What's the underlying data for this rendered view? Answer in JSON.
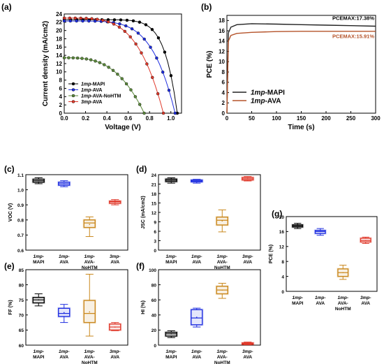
{
  "chart_data": [
    {
      "panel": "(a)",
      "type": "line",
      "xlabel": "Voltage (V)",
      "ylabel": "Current density (mA/cm2)",
      "xlim": [
        0.0,
        1.1
      ],
      "ylim": [
        0,
        24
      ],
      "xticks": [
        "0.0",
        "0.2",
        "0.4",
        "0.6",
        "0.8",
        "1.0"
      ],
      "yticks": [
        "0",
        "2",
        "4",
        "6",
        "8",
        "10",
        "12",
        "14",
        "16",
        "18",
        "20",
        "22",
        "24"
      ],
      "legend_position": "lower-left",
      "series": [
        {
          "name": "1mp-MAPI",
          "color": "#000000",
          "jsc": 22.6,
          "voc": 1.06,
          "shape": 9
        },
        {
          "name": "1mp-AVA",
          "color": "#1f2ee0",
          "jsc": 22.3,
          "voc": 1.04,
          "shape": 5
        },
        {
          "name": "1mp-AVA-NoHTM",
          "color": "#5c8a3c",
          "jsc": 13.4,
          "voc": 0.75,
          "shape": 3
        },
        {
          "name": "3mp-AVA",
          "color": "#e0392b",
          "jsc": 23.0,
          "voc": 0.93,
          "shape": 4
        }
      ]
    },
    {
      "panel": "(b)",
      "type": "line",
      "xlabel": "Time (s)",
      "ylabel": "PCE (%)",
      "xlim": [
        0,
        300
      ],
      "ylim": [
        0,
        19
      ],
      "xticks": [
        "0",
        "50",
        "100",
        "150",
        "200",
        "250",
        "300"
      ],
      "yticks": [
        "0",
        "2",
        "4",
        "6",
        "8",
        "10",
        "12",
        "14",
        "16",
        "18"
      ],
      "legend_position": "lower-left",
      "annotations": [
        "PCEMAX:17.38%",
        "PCEMAX:15.91%"
      ],
      "series": [
        {
          "name": "1mp-MAPI",
          "color": "#222222",
          "x": [
            0,
            3,
            8,
            20,
            50,
            100,
            150,
            200,
            250,
            300
          ],
          "values": [
            0,
            15.6,
            16.7,
            17.2,
            17.38,
            17.3,
            17.2,
            17.1,
            17.0,
            16.9
          ]
        },
        {
          "name": "1mp-AVA",
          "color": "#b5532a",
          "x": [
            0,
            3,
            8,
            20,
            50,
            100,
            150,
            200,
            250,
            300
          ],
          "values": [
            0,
            14.0,
            15.1,
            15.5,
            15.7,
            15.85,
            15.9,
            15.91,
            15.9,
            15.9
          ]
        }
      ]
    },
    {
      "panel": "(c)",
      "type": "box",
      "ylabel": "VOC (V)",
      "ylim": [
        0.6,
        1.1
      ],
      "yticks": [
        "0.6",
        "0.7",
        "0.8",
        "0.9",
        "1.0",
        "1.1"
      ],
      "categories": [
        "1mp-MAPI",
        "1mp-AVA",
        "1mp-AVA-NoHTM",
        "3mp-AVA"
      ],
      "boxes": [
        {
          "min": 1.04,
          "q1": 1.05,
          "median": 1.06,
          "q3": 1.07,
          "max": 1.08,
          "mean": 1.06,
          "color": "#000000"
        },
        {
          "min": 1.02,
          "q1": 1.03,
          "median": 1.04,
          "q3": 1.05,
          "max": 1.06,
          "mean": 1.04,
          "color": "#1f2ee0"
        },
        {
          "min": 0.69,
          "q1": 0.75,
          "median": 0.78,
          "q3": 0.8,
          "max": 0.82,
          "mean": 0.77,
          "color": "#c9871b"
        },
        {
          "min": 0.9,
          "q1": 0.91,
          "median": 0.92,
          "q3": 0.925,
          "max": 0.935,
          "mean": 0.918,
          "color": "#e0392b"
        }
      ]
    },
    {
      "panel": "(d)",
      "type": "box",
      "ylabel": "JSC (mA/cm2)",
      "ylim": [
        0,
        24
      ],
      "yticks": [
        "0",
        "3",
        "6",
        "9",
        "12",
        "15",
        "18",
        "21",
        "24"
      ],
      "categories": [
        "1mp-MAPI",
        "1mp-AVA",
        "1mp-AVA-NoHTM",
        "3mp-AVA"
      ],
      "boxes": [
        {
          "min": 21.3,
          "q1": 21.8,
          "median": 22.2,
          "q3": 22.6,
          "max": 23.0,
          "mean": 22.2,
          "color": "#000000"
        },
        {
          "min": 21.3,
          "q1": 21.7,
          "median": 22.0,
          "q3": 22.3,
          "max": 22.5,
          "mean": 22.0,
          "color": "#1f2ee0"
        },
        {
          "min": 5.8,
          "q1": 8.0,
          "median": 9.5,
          "q3": 10.5,
          "max": 12.8,
          "mean": 9.3,
          "color": "#c9871b"
        },
        {
          "min": 22.0,
          "q1": 22.3,
          "median": 22.7,
          "q3": 23.1,
          "max": 23.4,
          "mean": 22.7,
          "color": "#e0392b"
        }
      ]
    },
    {
      "panel": "(e)",
      "type": "box",
      "ylabel": "FF (%)",
      "ylim": [
        60,
        85
      ],
      "yticks": [
        "60",
        "65",
        "70",
        "75",
        "80",
        "85"
      ],
      "categories": [
        "1mp-MAPI",
        "1mp-AVA",
        "1mp-AVA-NoHTM",
        "3mp-AVA"
      ],
      "boxes": [
        {
          "min": 73.0,
          "q1": 74.0,
          "median": 75.0,
          "q3": 75.8,
          "max": 77.0,
          "mean": 75.0,
          "color": "#000000"
        },
        {
          "min": 67.5,
          "q1": 69.5,
          "median": 70.5,
          "q3": 72.2,
          "max": 73.5,
          "mean": 70.8,
          "color": "#1f2ee0"
        },
        {
          "min": 63.0,
          "q1": 67.5,
          "median": 70.5,
          "q3": 74.8,
          "max": 83.5,
          "mean": 71.0,
          "color": "#c9871b"
        },
        {
          "min": 64.8,
          "q1": 65.0,
          "median": 66.0,
          "q3": 67.0,
          "max": 67.5,
          "mean": 66.0,
          "color": "#e0392b"
        }
      ]
    },
    {
      "panel": "(f)",
      "type": "box",
      "ylabel": "HI (%)",
      "ylim": [
        0,
        100
      ],
      "yticks": [
        "0",
        "20",
        "40",
        "60",
        "80",
        "100"
      ],
      "categories": [
        "1mp-MAPI",
        "1mp-AVA",
        "1mp-AVA-NoHTM",
        "3mp-AVA"
      ],
      "boxes": [
        {
          "min": 10.0,
          "q1": 12.0,
          "median": 15.0,
          "q3": 17.0,
          "max": 19.0,
          "mean": 15.0,
          "color": "#000000"
        },
        {
          "min": 24.0,
          "q1": 27.0,
          "median": 36.0,
          "q3": 47.0,
          "max": 49.0,
          "mean": 37.0,
          "color": "#1f2ee0"
        },
        {
          "min": 62.0,
          "q1": 68.0,
          "median": 73.0,
          "q3": 78.0,
          "max": 82.0,
          "mean": 73.0,
          "color": "#c9871b"
        },
        {
          "min": 0.5,
          "q1": 1.0,
          "median": 2.0,
          "q3": 3.0,
          "max": 4.0,
          "mean": 2.0,
          "color": "#e0392b"
        }
      ]
    },
    {
      "panel": "(g)",
      "type": "box",
      "ylabel": "PCE (%)",
      "ylim": [
        0,
        20
      ],
      "yticks": [
        "0",
        "4",
        "8",
        "12",
        "16",
        "20"
      ],
      "categories": [
        "1mp-MAPI",
        "1mp-AVA",
        "1mp-AVA-NoHTM",
        "3mp-AVA"
      ],
      "boxes": [
        {
          "min": 16.8,
          "q1": 17.2,
          "median": 17.5,
          "q3": 17.8,
          "max": 18.2,
          "mean": 17.5,
          "color": "#000000"
        },
        {
          "min": 15.0,
          "q1": 15.5,
          "median": 16.0,
          "q3": 16.3,
          "max": 16.8,
          "mean": 16.0,
          "color": "#1f2ee0"
        },
        {
          "min": 3.2,
          "q1": 4.0,
          "median": 5.0,
          "q3": 6.0,
          "max": 7.0,
          "mean": 5.0,
          "color": "#c9871b"
        },
        {
          "min": 12.8,
          "q1": 13.2,
          "median": 13.6,
          "q3": 14.2,
          "max": 14.5,
          "mean": 13.6,
          "color": "#e0392b"
        }
      ]
    }
  ]
}
